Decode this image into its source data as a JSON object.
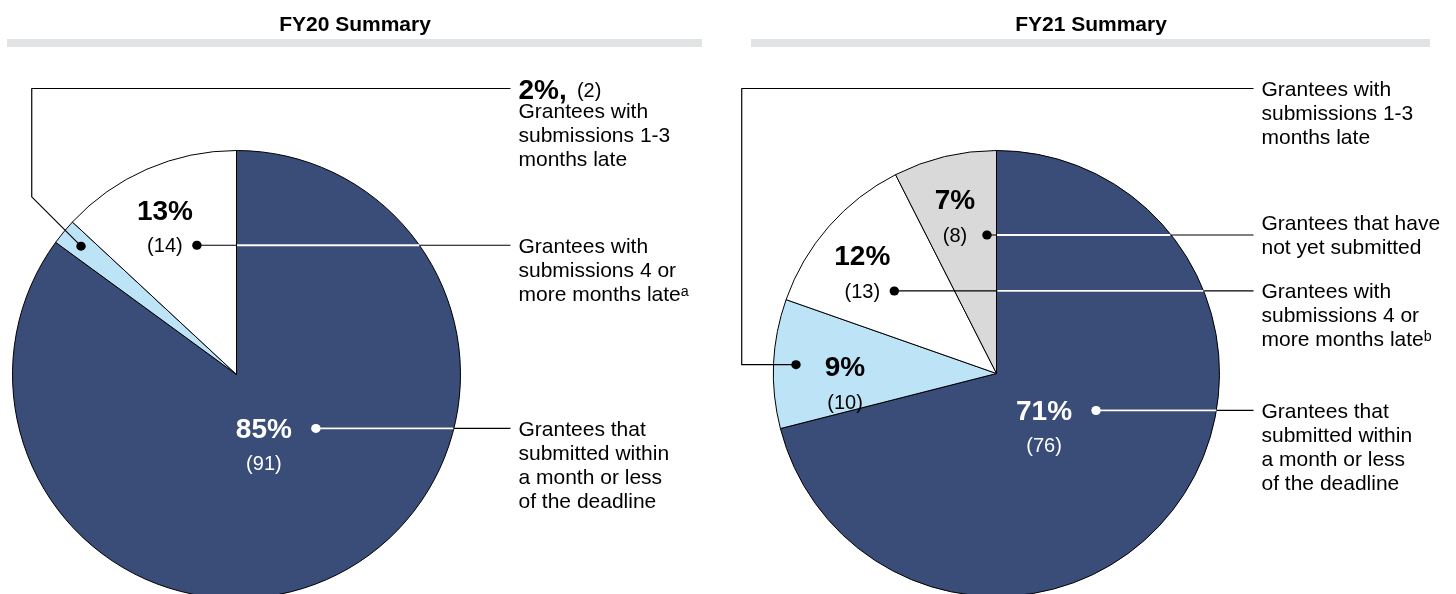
{
  "chart_data": [
    {
      "type": "pie",
      "title": "FY20 Summary",
      "categories": [
        "Grantees that\nsubmitted within\na month or less\nof the deadline",
        "Grantees with\nsubmissions 1-3\nmonths late",
        "Grantees with\nsubmissions 4 or\nmore months lateᵃ"
      ],
      "values": [
        91,
        2,
        14
      ],
      "colors": [
        "#394d78",
        "#bde3f7",
        "#ffffff"
      ],
      "value_labels": [
        "85%\n(91)",
        "2%, (2)",
        "13%\n(14)"
      ]
    },
    {
      "type": "pie",
      "title": "FY21 Summary",
      "categories": [
        "Grantees that\nsubmitted within\na month or less\nof the deadline",
        "Grantees with\nsubmissions 1-3\nmonths late",
        "Grantees with\nsubmissions 4 or\nmore months lateᵇ",
        "Grantees that have\nnot yet submitted"
      ],
      "values": [
        76,
        10,
        13,
        8
      ],
      "colors": [
        "#394d78",
        "#bde3f7",
        "#ffffff",
        "#d9d9d9"
      ],
      "value_labels": [
        "71%\n(76)",
        "9%\n(10)",
        "12%\n(13)",
        "7%\n(8)"
      ]
    }
  ]
}
